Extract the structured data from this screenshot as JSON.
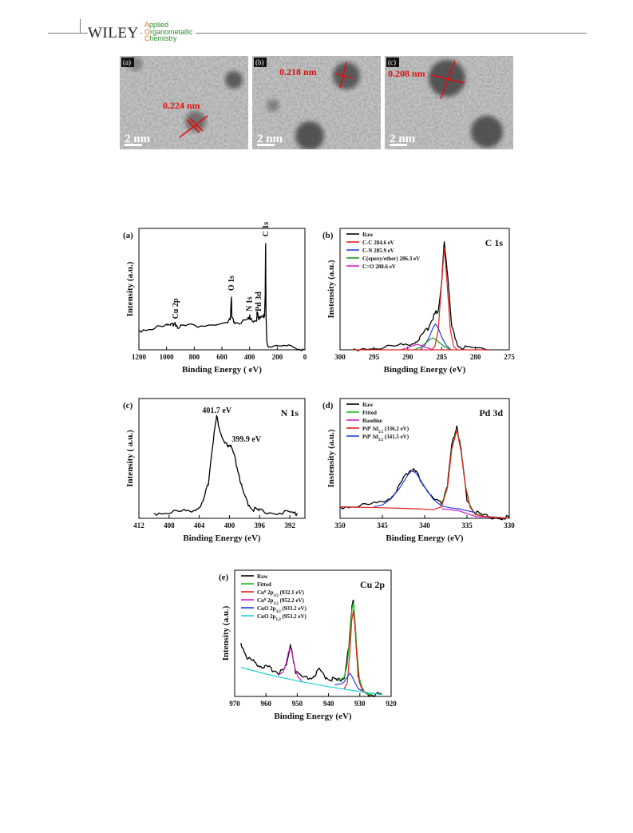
{
  "header": {
    "brand": "WILEY",
    "journal_lines": [
      {
        "initial": "A",
        "rest": "pplied"
      },
      {
        "initial": "O",
        "rest": "rganometallic"
      },
      {
        "initial": "C",
        "rest": "hemistry"
      }
    ]
  },
  "tem_images": [
    {
      "label": "(a)",
      "spacing": "0.224 nm",
      "scale": "2 nm"
    },
    {
      "label": "(b)",
      "spacing": "0.218 nm",
      "scale": "2 nm"
    },
    {
      "label": "(c)",
      "spacing": "0.208 nm",
      "scale": "2 nm"
    }
  ],
  "chart_data": [
    {
      "type": "line",
      "panel_label": "(a)",
      "xlabel": "Binding Energy ( eV)",
      "ylabel": "Intensity (a.u.)",
      "xlim": [
        1200,
        0
      ],
      "x_ticks": [
        1200,
        1000,
        800,
        600,
        400,
        200,
        0
      ],
      "annotations": [
        {
          "text": "Cu 2p",
          "x": 935
        },
        {
          "text": "O 1s",
          "x": 531
        },
        {
          "text": "N 1s",
          "x": 400
        },
        {
          "text": "Pd 3d",
          "x": 336
        },
        {
          "text": "C 1s",
          "x": 284
        }
      ],
      "series": [
        {
          "color": "#000000",
          "x": [
            1200,
            1100,
            1000,
            960,
            945,
            935,
            920,
            850,
            700,
            560,
            540,
            531,
            528,
            500,
            420,
            405,
            400,
            395,
            350,
            345,
            336,
            330,
            300,
            292,
            287,
            284,
            281,
            275,
            260,
            150,
            50,
            0
          ],
          "y": [
            0.18,
            0.2,
            0.22,
            0.26,
            0.22,
            0.24,
            0.22,
            0.22,
            0.23,
            0.24,
            0.28,
            0.5,
            0.28,
            0.25,
            0.26,
            0.3,
            0.31,
            0.27,
            0.28,
            0.34,
            0.31,
            0.29,
            0.3,
            0.33,
            0.5,
            1.0,
            0.3,
            0.05,
            0.04,
            0.03,
            0.02,
            0.0
          ]
        }
      ]
    },
    {
      "type": "line",
      "panel_label": "(b)",
      "title": "C 1s",
      "xlabel": "Bingding Energy (eV)",
      "ylabel": "Instensity (a.u.)",
      "xlim": [
        300,
        275
      ],
      "x_ticks": [
        300,
        295,
        290,
        285,
        280,
        275
      ],
      "legend": "top-left",
      "series": [
        {
          "name": "Raw",
          "color": "#000000",
          "x": [
            298,
            294,
            291,
            289,
            288,
            287,
            286.3,
            285.9,
            285.5,
            285,
            284.6,
            284.2,
            283.5,
            282.5,
            281,
            278
          ],
          "y": [
            0.01,
            0.02,
            0.04,
            0.07,
            0.12,
            0.2,
            0.3,
            0.34,
            0.36,
            0.6,
            1.0,
            0.75,
            0.2,
            0.03,
            0.01,
            0.0
          ]
        },
        {
          "name": "C-C 284.6 eV",
          "color": "#e52020",
          "x": [
            286.5,
            286,
            285.5,
            285,
            284.6,
            284.2,
            283.7,
            283.2,
            282.7
          ],
          "y": [
            0.0,
            0.03,
            0.18,
            0.62,
            0.94,
            0.62,
            0.18,
            0.03,
            0.0
          ]
        },
        {
          "name": "C-N 285.9 eV",
          "color": "#2a3ed8",
          "x": [
            288.2,
            287.5,
            286.8,
            286.3,
            285.9,
            285.5,
            285,
            284.3,
            283.6
          ],
          "y": [
            0.0,
            0.04,
            0.12,
            0.2,
            0.24,
            0.2,
            0.12,
            0.04,
            0.0
          ]
        },
        {
          "name": "C(epoxy/ether) 286.3 eV",
          "color": "#1a9a1a",
          "x": [
            289,
            288,
            287.2,
            286.6,
            286.3,
            286,
            285.4,
            284.6,
            283.6
          ],
          "y": [
            0.0,
            0.03,
            0.07,
            0.1,
            0.11,
            0.1,
            0.07,
            0.03,
            0.0
          ]
        },
        {
          "name": "C=O 288.6 eV",
          "color": "#d020d0",
          "x": [
            291,
            290,
            289.2,
            288.6,
            288,
            287.2,
            286.2
          ],
          "y": [
            0.0,
            0.02,
            0.04,
            0.05,
            0.04,
            0.02,
            0.0
          ]
        },
        {
          "name": "",
          "color": "#e52020",
          "x": [
            298,
            292,
            288,
            284,
            280,
            278
          ],
          "y": [
            0.0,
            0.0,
            0.0,
            0.0,
            0.0,
            0.0
          ]
        }
      ]
    },
    {
      "type": "line",
      "panel_label": "(c)",
      "title": "N 1s",
      "xlabel": "Binding Energy (eV)",
      "ylabel": "Intensity ( a.u.)",
      "xlim": [
        412,
        390
      ],
      "x_ticks": [
        412,
        408,
        404,
        400,
        396,
        392
      ],
      "annotations": [
        {
          "text": "401.7 eV",
          "x": 401.7
        },
        {
          "text": "399.9 eV",
          "x": 399.9
        }
      ],
      "series": [
        {
          "color": "#000000",
          "x": [
            410,
            408,
            406,
            404.5,
            403.5,
            402.8,
            402.2,
            401.7,
            401.2,
            400.7,
            400.3,
            399.9,
            399.4,
            398.8,
            398.2,
            397.5,
            396.8,
            396,
            394,
            392,
            391
          ],
          "y": [
            0.05,
            0.06,
            0.07,
            0.09,
            0.15,
            0.35,
            0.75,
            1.0,
            0.85,
            0.74,
            0.72,
            0.72,
            0.62,
            0.45,
            0.25,
            0.14,
            0.09,
            0.07,
            0.06,
            0.05,
            0.05
          ]
        }
      ]
    },
    {
      "type": "line",
      "panel_label": "(d)",
      "title": "Pd 3d",
      "xlabel": "Binding Energy (eV)",
      "ylabel": "Instensity (a.u.)",
      "xlim": [
        350,
        330
      ],
      "x_ticks": [
        350,
        345,
        340,
        335,
        330
      ],
      "legend": "top-left",
      "legend_entries": [
        {
          "label": "Raw",
          "color": "#000000"
        },
        {
          "label": "Fitted",
          "color": "#1ec01e"
        },
        {
          "label": "Baseline",
          "color": "#d020d0"
        },
        {
          "label": "Pd⁰ 3d₅/₂ (336.2 eV)",
          "color": "#e52020"
        },
        {
          "label": "Pd⁰ 3d₃/₂ (341.5 eV)",
          "color": "#2a3ed8"
        }
      ],
      "series": [
        {
          "name": "Raw",
          "color": "#000000",
          "x": [
            350,
            348,
            346,
            344,
            343,
            342,
            341.5,
            341,
            340,
            339,
            338,
            337.3,
            336.8,
            336.2,
            335.7,
            335,
            334,
            333,
            331,
            330
          ],
          "y": [
            0.12,
            0.13,
            0.15,
            0.22,
            0.33,
            0.48,
            0.52,
            0.48,
            0.33,
            0.2,
            0.15,
            0.35,
            0.75,
            0.97,
            0.7,
            0.2,
            0.06,
            0.02,
            0.01,
            0.0
          ]
        },
        {
          "name": "Fitted",
          "color": "#1ec01e",
          "x": [
            338,
            337.3,
            336.8,
            336.2,
            335.7,
            335.2,
            334.6,
            334,
            333,
            331,
            330
          ],
          "y": [
            0.14,
            0.33,
            0.72,
            0.93,
            0.7,
            0.35,
            0.12,
            0.05,
            0.02,
            0.01,
            0.0
          ]
        },
        {
          "name": "Baseline",
          "color": "#d020d0",
          "x": [
            338,
            336,
            335,
            334,
            332,
            330
          ],
          "y": [
            0.1,
            0.08,
            0.05,
            0.02,
            0.01,
            0.0
          ]
        },
        {
          "name": "Pd⁰ 3d₅/₂ (336.2 eV)",
          "color": "#e52020",
          "x": [
            350,
            345,
            341,
            339,
            338,
            337.3,
            336.8,
            336.2,
            335.7,
            335.2,
            334.6,
            334,
            333,
            330
          ],
          "y": [
            0.12,
            0.11,
            0.1,
            0.09,
            0.12,
            0.32,
            0.72,
            0.92,
            0.7,
            0.34,
            0.11,
            0.04,
            0.02,
            0.0
          ]
        },
        {
          "name": "Pd⁰ 3d₃/₂ (341.5 eV)",
          "color": "#2a3ed8",
          "x": [
            346,
            345,
            344,
            343,
            342,
            341.5,
            341,
            340,
            339,
            338,
            337,
            336,
            335,
            334
          ],
          "y": [
            0.12,
            0.14,
            0.2,
            0.31,
            0.45,
            0.5,
            0.47,
            0.33,
            0.2,
            0.13,
            0.11,
            0.1,
            0.08,
            0.06
          ]
        }
      ]
    },
    {
      "type": "line",
      "panel_label": "(e)",
      "title": "Cu 2p",
      "xlabel": "Binding Energy (eV)",
      "ylabel": "Intensity (a.u.)",
      "xlim": [
        970,
        920
      ],
      "x_ticks": [
        970,
        960,
        950,
        940,
        930,
        920
      ],
      "legend": "top-left",
      "legend_entries": [
        {
          "label": "Raw",
          "color": "#000000"
        },
        {
          "label": "Fitted",
          "color": "#1ec01e"
        },
        {
          "label": "Cu⁰ 2p₃/₂ (932.1 eV)",
          "color": "#e52020"
        },
        {
          "label": "Cu⁰ 2p₁/₂ (952.2 eV)",
          "color": "#d020d0"
        },
        {
          "label": "CuO 2p₃/₂ (933.2 eV)",
          "color": "#2a3ed8"
        },
        {
          "label": "CuO 2p₁/₂ (953.2 eV)",
          "color": "#20d0d0"
        }
      ],
      "series": [
        {
          "name": "Raw",
          "color": "#000000",
          "x": [
            968,
            966,
            964,
            962,
            960,
            958,
            956,
            954,
            953,
            952.2,
            951.5,
            950.5,
            948,
            945,
            943,
            941,
            939,
            937,
            935,
            933.5,
            932.5,
            932.1,
            931.5,
            930.5,
            929,
            927,
            925,
            923
          ],
          "y": [
            0.55,
            0.4,
            0.36,
            0.32,
            0.3,
            0.28,
            0.25,
            0.28,
            0.4,
            0.52,
            0.42,
            0.25,
            0.18,
            0.2,
            0.27,
            0.2,
            0.18,
            0.16,
            0.2,
            0.5,
            0.95,
            1.0,
            0.7,
            0.22,
            0.05,
            0.02,
            0.02,
            0.02
          ]
        },
        {
          "name": "Fitted",
          "color": "#1ec01e",
          "x": [
            937,
            935,
            934,
            933.2,
            932.6,
            932.1,
            931.6,
            931,
            930.2,
            929.2,
            928,
            926
          ],
          "y": [
            0.16,
            0.2,
            0.33,
            0.6,
            0.88,
            0.97,
            0.82,
            0.5,
            0.2,
            0.07,
            0.03,
            0.02
          ]
        },
        {
          "name": "Cu⁰ 2p₃/₂ (932.1 eV)",
          "color": "#e52020",
          "x": [
            935,
            934,
            933.2,
            932.6,
            932.1,
            931.6,
            931,
            930.2,
            929.2,
            928
          ],
          "y": [
            0.08,
            0.14,
            0.45,
            0.78,
            0.88,
            0.74,
            0.42,
            0.15,
            0.06,
            0.03
          ]
        },
        {
          "name": "Cu⁰ 2p₁/₂ (952.2 eV)",
          "color": "#d020d0",
          "x": [
            956,
            954.5,
            953.5,
            952.8,
            952.2,
            951.6,
            950.8,
            949.8,
            948.5
          ],
          "y": [
            0.22,
            0.25,
            0.35,
            0.46,
            0.5,
            0.44,
            0.3,
            0.2,
            0.16
          ]
        },
        {
          "name": "CuO 2p₃/₂ (933.2 eV)",
          "color": "#2a3ed8",
          "x": [
            938,
            936,
            935,
            934,
            933.2,
            932.4,
            931.5,
            930.5,
            929.5
          ],
          "y": [
            0.12,
            0.13,
            0.15,
            0.2,
            0.24,
            0.2,
            0.14,
            0.08,
            0.06
          ]
        },
        {
          "name": "CuO 2p₁/₂ (953.2 eV)",
          "color": "#20d0d0",
          "x": [
            968,
            960,
            950,
            940,
            930,
            923
          ],
          "y": [
            0.3,
            0.23,
            0.16,
            0.1,
            0.05,
            0.02
          ]
        }
      ]
    }
  ]
}
